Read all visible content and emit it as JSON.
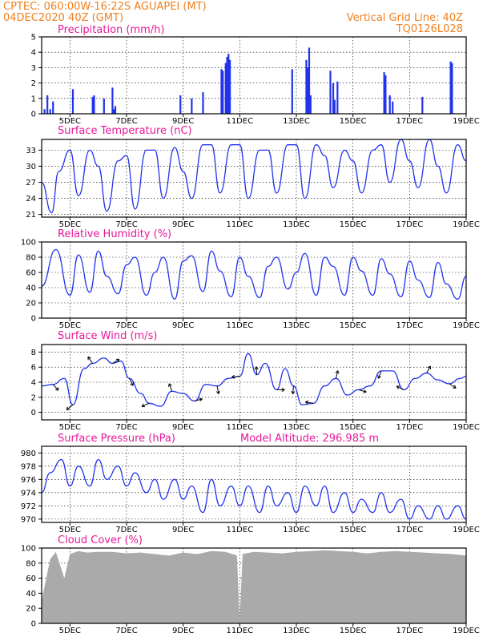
{
  "header": {
    "line1": "CPTEC:   060:00W-16:22S   AGUAPEI (MT)",
    "line2": "04DEC2020 40Z (GMT)",
    "right1": "Vertical Grid Line: 40Z",
    "right2": "TQ0126L028"
  },
  "x_ticks": [
    "5DEC",
    "7DEC",
    "9DEC",
    "11DEC",
    "13DEC",
    "15DEC",
    "17DEC",
    "19DEC"
  ],
  "colors": {
    "line": "#2233ee",
    "bar": "#2233ee",
    "cloud": "#aaaaaa",
    "header": "#f07f1e",
    "title": "#e8189a"
  },
  "panels": {
    "precip": {
      "title": "Precipitation (mm/h)"
    },
    "temp": {
      "title": "Surface Temperature (nC)"
    },
    "rh": {
      "title": "Relative Humidity (%)"
    },
    "wind": {
      "title": "Surface Wind (m/s)"
    },
    "pres": {
      "title": "Surface Pressure (hPa)",
      "extra": "Model Altitude: 296.985 m"
    },
    "cloud": {
      "title": "Cloud Cover (%)"
    }
  },
  "chart_data": [
    {
      "type": "bar",
      "title": "Precipitation (mm/h)",
      "ylim": [
        0,
        5
      ],
      "yticks": [
        0,
        1,
        2,
        3,
        4,
        5
      ],
      "x": [
        4.1,
        4.2,
        4.3,
        4.4,
        5.1,
        5.8,
        5.85,
        6.2,
        6.5,
        6.55,
        6.6,
        8.9,
        9.3,
        9.7,
        10.35,
        10.4,
        10.5,
        10.55,
        10.6,
        10.65,
        12.85,
        13.35,
        13.4,
        13.45,
        13.5,
        14.2,
        14.3,
        14.35,
        14.45,
        16.1,
        16.15,
        16.3,
        16.4,
        17.45,
        18.45,
        18.5
      ],
      "values": [
        0.3,
        1.2,
        0.3,
        0.8,
        1.6,
        1.1,
        1.2,
        1.0,
        1.7,
        0.3,
        0.5,
        1.2,
        1.0,
        1.4,
        2.9,
        2.8,
        3.3,
        3.7,
        3.9,
        3.5,
        2.9,
        3.5,
        3.0,
        4.3,
        1.2,
        2.8,
        2.0,
        0.9,
        2.1,
        2.7,
        2.5,
        1.2,
        0.8,
        1.1,
        3.4,
        3.3
      ]
    },
    {
      "type": "line",
      "title": "Surface Temperature (nC)",
      "ylim": [
        20.5,
        35
      ],
      "yticks": [
        21,
        24,
        27,
        30,
        33
      ],
      "x": [
        4,
        4.35,
        4.6,
        5.0,
        5.3,
        5.7,
        6.0,
        6.3,
        6.7,
        7.0,
        7.3,
        7.7,
        8.0,
        8.3,
        8.7,
        9.0,
        9.3,
        9.7,
        10.0,
        10.3,
        10.7,
        11.0,
        11.3,
        11.7,
        12.0,
        12.3,
        12.7,
        13.0,
        13.3,
        13.7,
        14.0,
        14.3,
        14.7,
        15.0,
        15.3,
        15.7,
        16.0,
        16.3,
        16.7,
        17.0,
        17.3,
        17.7,
        18.0,
        18.3,
        18.7,
        19.0
      ],
      "values": [
        27,
        21.3,
        29,
        33,
        24.5,
        33,
        30,
        21.6,
        31,
        32,
        22,
        33,
        33,
        24,
        33.5,
        29,
        24,
        34,
        34,
        25,
        34,
        34,
        24,
        33,
        33,
        25,
        34,
        34,
        24,
        34,
        32,
        26,
        33,
        31,
        25,
        33,
        34,
        27,
        35,
        31,
        26,
        35,
        30,
        25,
        34,
        31
      ]
    },
    {
      "type": "line",
      "title": "Relative Humidity (%)",
      "ylim": [
        0,
        100
      ],
      "yticks": [
        0,
        20,
        40,
        60,
        80,
        100
      ],
      "x": [
        4,
        4.5,
        5.0,
        5.3,
        5.7,
        6.0,
        6.3,
        6.7,
        7.0,
        7.3,
        7.7,
        8.0,
        8.3,
        8.7,
        9.0,
        9.3,
        9.7,
        10.0,
        10.3,
        10.7,
        11.0,
        11.3,
        11.7,
        12.0,
        12.3,
        12.7,
        13.0,
        13.3,
        13.7,
        14.0,
        14.3,
        14.7,
        15.0,
        15.3,
        15.7,
        16.0,
        16.3,
        16.7,
        17.0,
        17.3,
        17.7,
        18.0,
        18.3,
        18.7,
        19.0
      ],
      "values": [
        42,
        90,
        30,
        83,
        34,
        88,
        55,
        32,
        70,
        80,
        30,
        60,
        80,
        25,
        75,
        82,
        35,
        88,
        62,
        28,
        80,
        55,
        27,
        68,
        80,
        38,
        60,
        85,
        30,
        80,
        68,
        30,
        80,
        62,
        30,
        78,
        58,
        28,
        75,
        50,
        27,
        73,
        45,
        25,
        55
      ]
    },
    {
      "type": "line",
      "title": "Surface Wind (m/s)",
      "ylim": [
        -1,
        9
      ],
      "yticks": [
        0,
        2,
        4,
        6,
        8
      ],
      "x": [
        4,
        4.4,
        4.8,
        5.1,
        5.5,
        5.8,
        6.2,
        6.5,
        6.8,
        7.1,
        7.5,
        7.8,
        8.2,
        8.6,
        9.0,
        9.4,
        9.8,
        10.2,
        10.6,
        11.0,
        11.3,
        11.6,
        11.9,
        12.3,
        12.6,
        12.9,
        13.2,
        13.6,
        14.0,
        14.4,
        14.8,
        15.2,
        15.6,
        16.0,
        16.4,
        16.8,
        17.2,
        17.6,
        18.0,
        18.4,
        18.8,
        19.0
      ],
      "values": [
        3.5,
        3.7,
        4.5,
        1.0,
        5.8,
        6.5,
        7.2,
        6.5,
        6.8,
        4.5,
        2.5,
        1.2,
        0.8,
        2.8,
        2.5,
        1.5,
        3.7,
        3.5,
        4.5,
        4.8,
        7.8,
        5.0,
        6.5,
        3.0,
        5.8,
        3.5,
        1.0,
        1.2,
        3.5,
        4.5,
        2.3,
        3.0,
        3.5,
        5.5,
        5.5,
        3.0,
        4.5,
        5.2,
        4.3,
        3.8,
        4.5,
        4.8
      ]
    },
    {
      "type": "line",
      "title": "Surface Pressure (hPa)",
      "ylim": [
        969.5,
        981
      ],
      "yticks": [
        970,
        972,
        974,
        976,
        978,
        980
      ],
      "x": [
        4,
        4.3,
        4.7,
        5.0,
        5.3,
        5.7,
        6.0,
        6.3,
        6.7,
        7.0,
        7.3,
        7.7,
        8.0,
        8.3,
        8.7,
        9.0,
        9.3,
        9.7,
        10.0,
        10.3,
        10.7,
        11.0,
        11.3,
        11.7,
        12.0,
        12.3,
        12.7,
        13.0,
        13.3,
        13.7,
        14.0,
        14.3,
        14.7,
        15.0,
        15.3,
        15.7,
        16.0,
        16.3,
        16.7,
        17.0,
        17.3,
        17.7,
        18.0,
        18.3,
        18.7,
        19.0
      ],
      "values": [
        974,
        977,
        979,
        975,
        978,
        975,
        979,
        976,
        978,
        975,
        977,
        974,
        976,
        973,
        976,
        973,
        975,
        971,
        976,
        972,
        975,
        972,
        975,
        971,
        975,
        972,
        974,
        971,
        975,
        972,
        975,
        971,
        974,
        971,
        973,
        971,
        974,
        971,
        973,
        970,
        972,
        970,
        972,
        970,
        972,
        970
      ]
    },
    {
      "type": "area",
      "title": "Cloud Cover (%)",
      "ylim": [
        0,
        100
      ],
      "yticks": [
        0,
        20,
        40,
        60,
        80,
        100
      ],
      "x": [
        4,
        4.3,
        4.5,
        4.8,
        5.0,
        5.3,
        5.6,
        6.0,
        6.5,
        7.0,
        7.5,
        8.0,
        8.5,
        9.0,
        9.5,
        10.0,
        10.5,
        10.9,
        11.0,
        11.1,
        11.5,
        12.0,
        12.5,
        13.0,
        13.5,
        14.0,
        14.5,
        15.0,
        15.5,
        16.0,
        16.5,
        17.0,
        17.5,
        18.0,
        18.5,
        19.0
      ],
      "values": [
        30,
        85,
        95,
        60,
        92,
        96,
        94,
        95,
        95,
        93,
        94,
        92,
        90,
        94,
        92,
        96,
        95,
        90,
        5,
        92,
        95,
        94,
        93,
        95,
        96,
        97,
        96,
        95,
        93,
        95,
        96,
        95,
        94,
        93,
        92,
        90
      ]
    }
  ]
}
